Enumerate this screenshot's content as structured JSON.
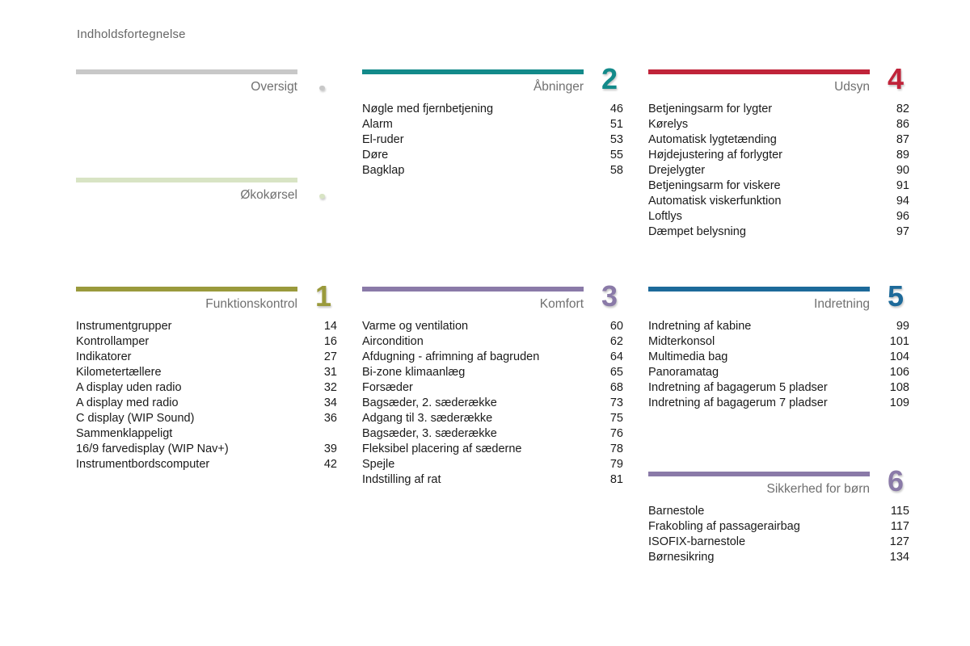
{
  "page_title": "Indholdsfortegnelse",
  "sections": {
    "oversigt": {
      "title": "Oversigt",
      "color": "#c8c8c8"
    },
    "okokorsel": {
      "title": "Økokørsel",
      "color": "#d8e4c4"
    },
    "s1": {
      "number": "1",
      "title": "Funktionskontrol",
      "color": "#9a9a3c",
      "items": [
        {
          "label": "Instrumentgrupper",
          "page": "14"
        },
        {
          "label": "Kontrollamper",
          "page": "16"
        },
        {
          "label": "Indikatorer",
          "page": "27"
        },
        {
          "label": "Kilometertællere",
          "page": "31"
        },
        {
          "label": "A display uden radio",
          "page": "32"
        },
        {
          "label": "A display med radio",
          "page": "34"
        },
        {
          "label": "C display (WIP Sound)",
          "page": "36"
        },
        {
          "label": "Sammenklappeligt\n  16/9 farvedisplay (WIP Nav+)",
          "page": "39"
        },
        {
          "label": "Instrumentbordscomputer",
          "page": "42"
        }
      ]
    },
    "s2": {
      "number": "2",
      "title": "Åbninger",
      "color": "#138a8a",
      "items": [
        {
          "label": "Nøgle med fjernbetjening",
          "page": "46"
        },
        {
          "label": "Alarm",
          "page": "51"
        },
        {
          "label": "El-ruder",
          "page": "53"
        },
        {
          "label": "Døre",
          "page": "55"
        },
        {
          "label": "Bagklap",
          "page": "58"
        }
      ]
    },
    "s3": {
      "number": "3",
      "title": "Komfort",
      "color": "#8a7aa8",
      "items": [
        {
          "label": "Varme og ventilation",
          "page": "60"
        },
        {
          "label": "Aircondition",
          "page": "62"
        },
        {
          "label": "Afdugning - afrimning af bagruden",
          "page": "64"
        },
        {
          "label": "Bi-zone klimaanlæg",
          "page": "65"
        },
        {
          "label": "Forsæder",
          "page": "68"
        },
        {
          "label": "Bagsæder, 2. sæderække",
          "page": "73"
        },
        {
          "label": "Adgang til 3. sæderække",
          "page": "75"
        },
        {
          "label": "Bagsæder, 3. sæderække",
          "page": "76"
        },
        {
          "label": "Fleksibel placering af sæderne",
          "page": "78"
        },
        {
          "label": "Spejle",
          "page": "79"
        },
        {
          "label": "Indstilling af rat",
          "page": "81"
        }
      ]
    },
    "s4": {
      "number": "4",
      "title": "Udsyn",
      "color": "#c0243a",
      "items": [
        {
          "label": "Betjeningsarm for lygter",
          "page": "82"
        },
        {
          "label": "Kørelys",
          "page": "86"
        },
        {
          "label": "Automatisk lygtetænding",
          "page": "87"
        },
        {
          "label": "Højdejustering af forlygter",
          "page": "89"
        },
        {
          "label": "Drejelygter",
          "page": "90"
        },
        {
          "label": "Betjeningsarm for viskere",
          "page": "91"
        },
        {
          "label": "Automatisk viskerfunktion",
          "page": "94"
        },
        {
          "label": "Loftlys",
          "page": "96"
        },
        {
          "label": "Dæmpet belysning",
          "page": "97"
        }
      ]
    },
    "s5": {
      "number": "5",
      "title": "Indretning",
      "color": "#1d6a9a",
      "items": [
        {
          "label": "Indretning af kabine",
          "page": "99"
        },
        {
          "label": "Midterkonsol",
          "page": "101"
        },
        {
          "label": "Multimedia bag",
          "page": "104"
        },
        {
          "label": "Panoramatag",
          "page": "106"
        },
        {
          "label": "Indretning af bagagerum 5 pladser",
          "page": "108"
        },
        {
          "label": "Indretning af bagagerum 7 pladser",
          "page": "109"
        }
      ]
    },
    "s6": {
      "number": "6",
      "title": "Sikkerhed for børn",
      "color": "#8a7aa8",
      "items": [
        {
          "label": "Barnestole",
          "page": "115"
        },
        {
          "label": "Frakobling af passagerairbag",
          "page": "117"
        },
        {
          "label": "ISOFIX-barnestole",
          "page": "127"
        },
        {
          "label": "Børnesikring",
          "page": "134"
        }
      ]
    }
  }
}
